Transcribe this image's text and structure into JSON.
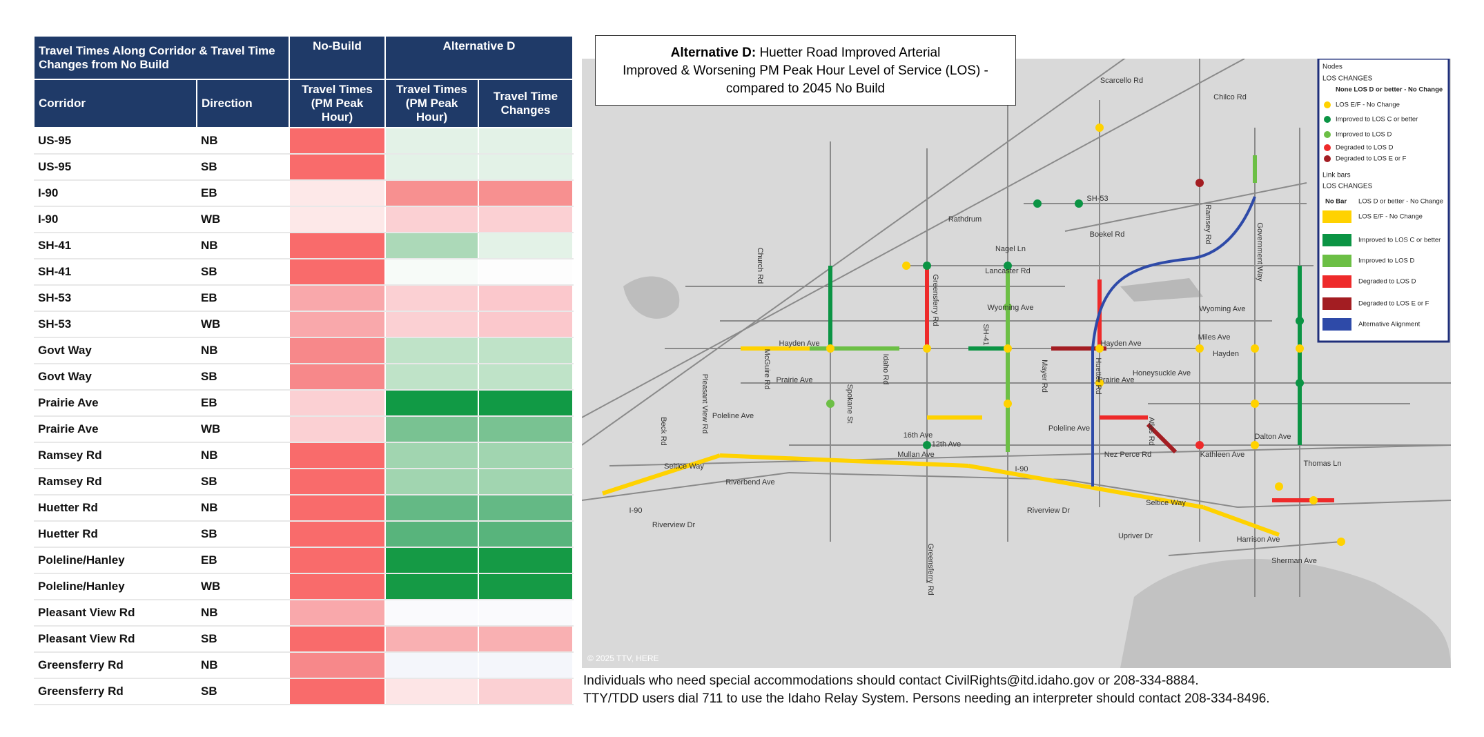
{
  "table": {
    "header": {
      "title": "Travel Times Along Corridor & Travel Time Changes from No Build",
      "no_build": "No-Build",
      "alt_d": "Alternative D",
      "corridor": "Corridor",
      "direction": "Direction",
      "travel_times": "Travel Times (PM Peak Hour)",
      "travel_times_alt": "Travel Times (PM Peak Hour)",
      "changes": "Travel Time Changes"
    },
    "rows": [
      {
        "corridor": "US-95",
        "direction": "NB",
        "colors": [
          "#f96b6b",
          "#e3f2e7",
          "#e3f2e7"
        ]
      },
      {
        "corridor": "US-95",
        "direction": "SB",
        "colors": [
          "#f96b6b",
          "#e3f2e7",
          "#e3f2e7"
        ]
      },
      {
        "corridor": "I-90",
        "direction": "EB",
        "colors": [
          "#fde8e8",
          "#f79090",
          "#f79090"
        ]
      },
      {
        "corridor": "I-90",
        "direction": "WB",
        "colors": [
          "#fde8e8",
          "#fbd0d3",
          "#fbd0d3"
        ]
      },
      {
        "corridor": "SH-41",
        "direction": "NB",
        "colors": [
          "#f96b6b",
          "#acd9b8",
          "#e3f2e7"
        ]
      },
      {
        "corridor": "SH-41",
        "direction": "SB",
        "colors": [
          "#f96b6b",
          "#f7fbf8",
          "#fdfdfd"
        ]
      },
      {
        "corridor": "SH-53",
        "direction": "EB",
        "colors": [
          "#f9a8ab",
          "#fbd0d3",
          "#fbc8cc"
        ]
      },
      {
        "corridor": "SH-53",
        "direction": "WB",
        "colors": [
          "#f9a8ab",
          "#fbd0d3",
          "#fbc8cc"
        ]
      },
      {
        "corridor": "Govt Way",
        "direction": "NB",
        "colors": [
          "#f7888a",
          "#bfe3c8",
          "#bfe3c8"
        ]
      },
      {
        "corridor": "Govt Way",
        "direction": "SB",
        "colors": [
          "#f7888a",
          "#bfe3c8",
          "#bfe3c8"
        ]
      },
      {
        "corridor": "Prairie Ave",
        "direction": "EB",
        "colors": [
          "#fbd0d3",
          "#119a45",
          "#119a45"
        ]
      },
      {
        "corridor": "Prairie Ave",
        "direction": "WB",
        "colors": [
          "#fbd0d3",
          "#79c292",
          "#79c292"
        ]
      },
      {
        "corridor": "Ramsey Rd",
        "direction": "NB",
        "colors": [
          "#f96b6b",
          "#a1d5b0",
          "#a1d5b0"
        ]
      },
      {
        "corridor": "Ramsey Rd",
        "direction": "SB",
        "colors": [
          "#f96b6b",
          "#a1d5b0",
          "#a1d5b0"
        ]
      },
      {
        "corridor": "Huetter Rd",
        "direction": "NB",
        "colors": [
          "#f96b6b",
          "#64b985",
          "#64b985"
        ]
      },
      {
        "corridor": "Huetter Rd",
        "direction": "SB",
        "colors": [
          "#f96b6b",
          "#58b47c",
          "#58b47c"
        ]
      },
      {
        "corridor": "Poleline/Hanley",
        "direction": "EB",
        "colors": [
          "#f96b6b",
          "#159a45",
          "#159a45"
        ]
      },
      {
        "corridor": "Poleline/Hanley",
        "direction": "WB",
        "colors": [
          "#f96b6b",
          "#159a45",
          "#159a45"
        ]
      },
      {
        "corridor": "Pleasant View Rd",
        "direction": "NB",
        "colors": [
          "#f9a8ab",
          "#fafafd",
          "#fafafd"
        ]
      },
      {
        "corridor": "Pleasant View Rd",
        "direction": "SB",
        "colors": [
          "#f96b6b",
          "#f9b0b2",
          "#f9b0b2"
        ]
      },
      {
        "corridor": "Greensferry Rd",
        "direction": "NB",
        "colors": [
          "#f7888a",
          "#f4f6fb",
          "#f4f6fb"
        ]
      },
      {
        "corridor": "Greensferry Rd",
        "direction": "SB",
        "colors": [
          "#f96b6b",
          "#fde5e6",
          "#fbd0d3"
        ]
      }
    ]
  },
  "map": {
    "title": {
      "bold": "Alternative D:",
      "rest": " Huetter Road Improved Arterial",
      "line2": "Improved & Worsening PM Peak Hour Level of Service (LOS) -",
      "line3": "compared to 2045 No Build"
    },
    "credit": "© 2025 TTV, HERE",
    "labels": [
      "Scarcello Rd",
      "Chilco Rd",
      "SH-53",
      "Boekel Rd",
      "Nagel Ln",
      "Lancaster Rd",
      "Wyoming Ave",
      "Hayden Ave",
      "Hayden Ave",
      "Prairie Ave",
      "Prairie Ave",
      "Honeysuckle Ave",
      "Poleline Ave",
      "Poleline Ave",
      "16th Ave",
      "12th Ave",
      "Mullan Ave",
      "I-90",
      "I-90",
      "Riverbend Ave",
      "Seltice Way",
      "Seltice Way",
      "Riverview Dr",
      "Riverview Dr",
      "Nez Perce Rd",
      "Kathleen Ave",
      "Upriver Dr",
      "Wyoming Ave",
      "Miles Ave",
      "Hayden",
      "Dalton Ave",
      "Thomas Ln",
      "Harrison Ave",
      "Sherman Ave",
      "Rathdrum"
    ],
    "vlabels": [
      "Church Rd",
      "Greensferry Rd",
      "SH-41",
      "Mayer Rd",
      "Huetter Rd",
      "Atlas Rd",
      "Ramsey Rd",
      "Government Way",
      "Idaho Rd",
      "McGuire Rd",
      "Beck Rd",
      "Pleasant View Rd",
      "Spokane St",
      "Greensferry Rd"
    ],
    "legend": {
      "nodes_title": "Nodes",
      "nodes_sub": "LOS CHANGES",
      "nodes": [
        {
          "label": "None LOS D or better - No Change",
          "color": null
        },
        {
          "label": "LOS E/F - No Change",
          "color": "#ffd200"
        },
        {
          "label": "Improved to LOS C or better",
          "color": "#0b9444"
        },
        {
          "label": "Improved to LOS D",
          "color": "#6cbf45"
        },
        {
          "label": "Degraded to LOS D",
          "color": "#ee2a2a"
        },
        {
          "label": "Degraded to LOS E or F",
          "color": "#a31d22"
        }
      ],
      "links_title": "Link bars",
      "links_sub": "LOS CHANGES",
      "links": [
        {
          "key": "No Bar",
          "label": "LOS D or better - No Change",
          "color": null
        },
        {
          "label": "LOS E/F - No Change",
          "color": "#ffd200"
        },
        {
          "label": "Improved to LOS C or better",
          "color": "#0b9444"
        },
        {
          "label": "Improved to LOS D",
          "color": "#6cbf45"
        },
        {
          "label": "Degraded to LOS D",
          "color": "#ee2a2a"
        },
        {
          "label": "Degraded to LOS E or F",
          "color": "#a31d22"
        },
        {
          "label": "Alternative Alignment",
          "color": "#2e4aa8"
        }
      ]
    }
  },
  "footer": {
    "line1": "Individuals who need special accommodations should contact CivilRights@itd.idaho.gov or 208-334-8884.",
    "line2": "TTY/TDD users dial 711 to use the Idaho Relay System. Persons needing an interpreter should contact 208-334-8496."
  }
}
